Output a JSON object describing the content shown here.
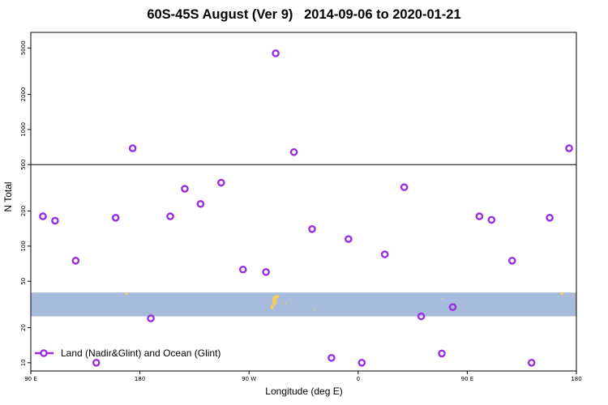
{
  "chart_data": {
    "type": "scatter",
    "title": "60S-45S August (Ver 9)   2014-09-06 to 2020-01-21",
    "xlabel": "Longitude (deg E)",
    "ylabel": "N Total",
    "x_ticks": [
      {
        "value": 0,
        "label": "90 E"
      },
      {
        "value": 90,
        "label": "180"
      },
      {
        "value": 180,
        "label": "90 W"
      },
      {
        "value": 270,
        "label": "0"
      },
      {
        "value": 360,
        "label": "90 E"
      },
      {
        "value": 450,
        "label": "180"
      }
    ],
    "y_ticks": [
      10,
      20,
      50,
      100,
      200,
      500,
      1000,
      2000,
      5000
    ],
    "y_scale": "log",
    "xlim": [
      0,
      450
    ],
    "ylim": [
      8.5,
      6800
    ],
    "grid": false,
    "legend_position": "bottom-left",
    "break_line_value": 500,
    "shaded_band": {
      "ymin": 25,
      "ymax": 40,
      "color": "#a7bcdc"
    },
    "land_color": "#f5cd5c",
    "series": [
      {
        "name": "Land (Nadir&Glint) and Ocean (Glint)",
        "color": "#9b2de0",
        "points": [
          {
            "x": 10,
            "y": 180
          },
          {
            "x": 20,
            "y": 165
          },
          {
            "x": 37,
            "y": 75
          },
          {
            "x": 54,
            "y": 10
          },
          {
            "x": 70,
            "y": 175
          },
          {
            "x": 84,
            "y": 690
          },
          {
            "x": 99,
            "y": 24
          },
          {
            "x": 115,
            "y": 180
          },
          {
            "x": 127,
            "y": 310
          },
          {
            "x": 140,
            "y": 230
          },
          {
            "x": 157,
            "y": 350
          },
          {
            "x": 175,
            "y": 63
          },
          {
            "x": 194,
            "y": 60
          },
          {
            "x": 202,
            "y": 4500
          },
          {
            "x": 217,
            "y": 640
          },
          {
            "x": 232,
            "y": 140
          },
          {
            "x": 248,
            "y": 11
          },
          {
            "x": 262,
            "y": 115
          },
          {
            "x": 273,
            "y": 10
          },
          {
            "x": 292,
            "y": 85
          },
          {
            "x": 308,
            "y": 320
          },
          {
            "x": 322,
            "y": 25
          },
          {
            "x": 339,
            "y": 12
          },
          {
            "x": 348,
            "y": 30
          },
          {
            "x": 370,
            "y": 180
          },
          {
            "x": 380,
            "y": 168
          },
          {
            "x": 397,
            "y": 75
          },
          {
            "x": 413,
            "y": 10
          },
          {
            "x": 428,
            "y": 175
          },
          {
            "x": 444,
            "y": 690
          }
        ]
      }
    ]
  }
}
